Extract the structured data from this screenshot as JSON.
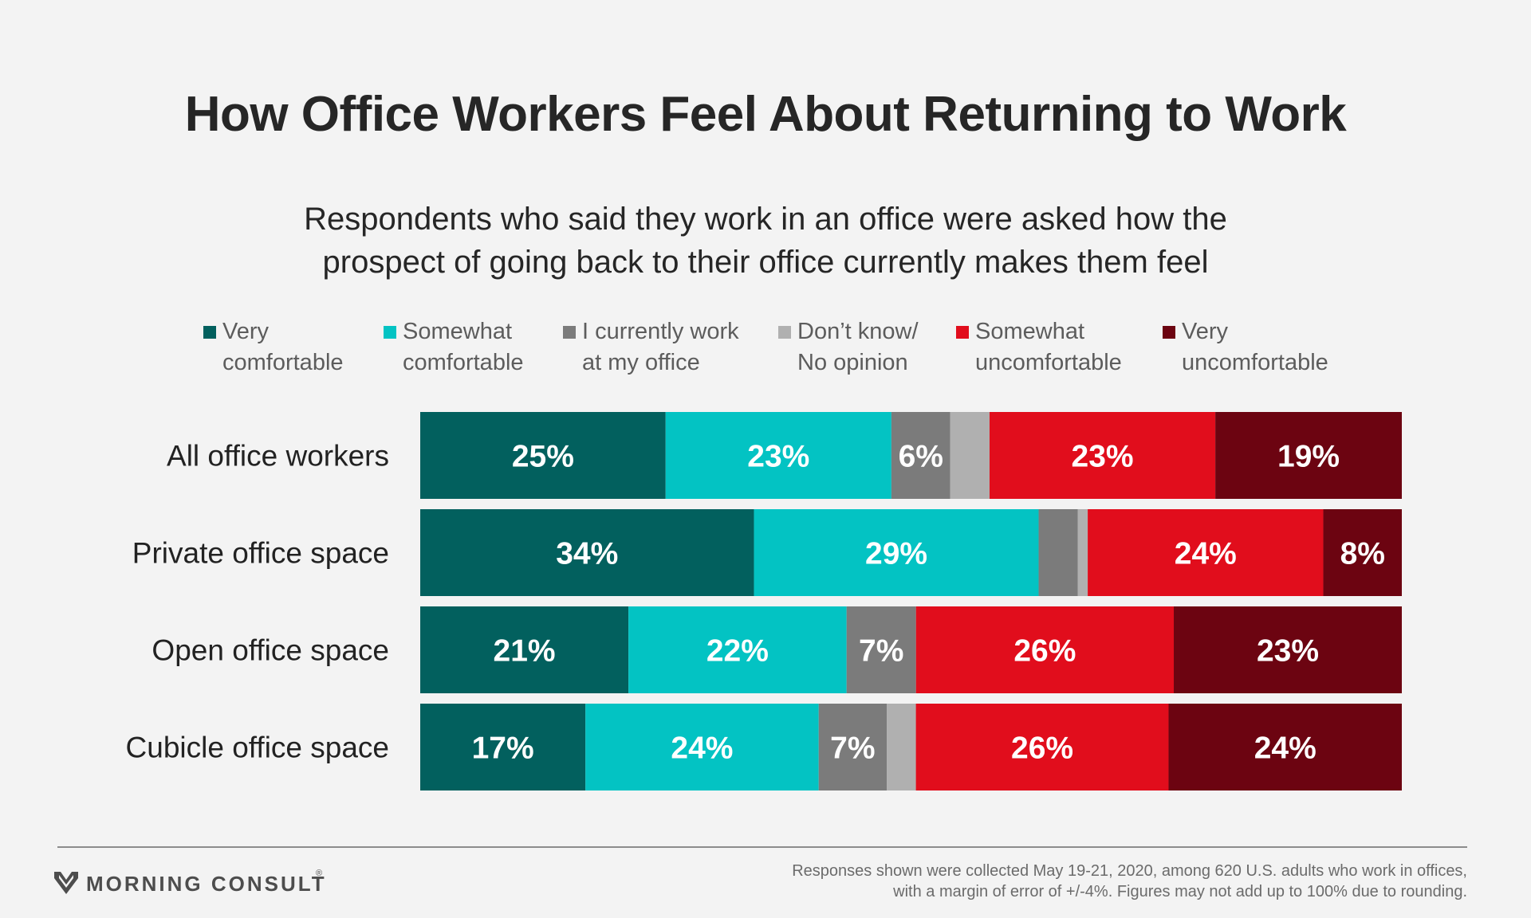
{
  "title": "How Office Workers Feel About Returning to Work",
  "subtitle": {
    "line1": "Respondents who said they work in an office were asked how the",
    "line2": "prospect of going back to their office currently makes them feel"
  },
  "legend": [
    {
      "line1": "Very",
      "line2": "comfortable",
      "color": "#02605e"
    },
    {
      "line1": "Somewhat",
      "line2": "comfortable",
      "color": "#03c3c3"
    },
    {
      "line1": "I currently work",
      "line2": "at my office",
      "color": "#7b7b7b"
    },
    {
      "line1": "Don’t know/",
      "line2": "No opinion",
      "color": "#b0b0b0"
    },
    {
      "line1": "Somewhat",
      "line2": "uncomfortable",
      "color": "#e10d1c"
    },
    {
      "line1": "Very",
      "line2": "uncomfortable",
      "color": "#6c0411"
    }
  ],
  "chart_data": {
    "type": "bar",
    "orientation": "horizontal",
    "stacked": true,
    "xlim": [
      0,
      100
    ],
    "categories": [
      "All office workers",
      "Private office space",
      "Open office space",
      "Cubicle office space"
    ],
    "series": [
      {
        "name": "Very comfortable",
        "color": "#02605e",
        "values": [
          25,
          34,
          21,
          17
        ],
        "labels": [
          "25%",
          "34%",
          "21%",
          "17%"
        ]
      },
      {
        "name": "Somewhat comfortable",
        "color": "#03c3c3",
        "values": [
          23,
          29,
          22,
          24
        ],
        "labels": [
          "23%",
          "29%",
          "22%",
          "24%"
        ]
      },
      {
        "name": "I currently work at my office",
        "color": "#7b7b7b",
        "values": [
          6,
          4,
          7,
          7
        ],
        "labels": [
          "6%",
          "",
          "7%",
          "7%"
        ]
      },
      {
        "name": "Don’t know/ No opinion",
        "color": "#b0b0b0",
        "values": [
          4,
          1,
          0,
          3
        ],
        "labels": [
          "",
          "",
          "",
          ""
        ]
      },
      {
        "name": "Somewhat uncomfortable",
        "color": "#e10d1c",
        "values": [
          23,
          24,
          26,
          26
        ],
        "labels": [
          "23%",
          "24%",
          "26%",
          "26%"
        ]
      },
      {
        "name": "Very uncomfortable",
        "color": "#6c0411",
        "values": [
          19,
          8,
          23,
          24
        ],
        "labels": [
          "19%",
          "8%",
          "23%",
          "24%"
        ]
      }
    ]
  },
  "brand": "MORNING CONSULT",
  "footnote": {
    "line1": "Responses shown were collected May 19-21, 2020, among 620 U.S. adults who work in offices,",
    "line2": "with a margin of error of +/-4%. Figures may not add up to 100% due to rounding."
  }
}
